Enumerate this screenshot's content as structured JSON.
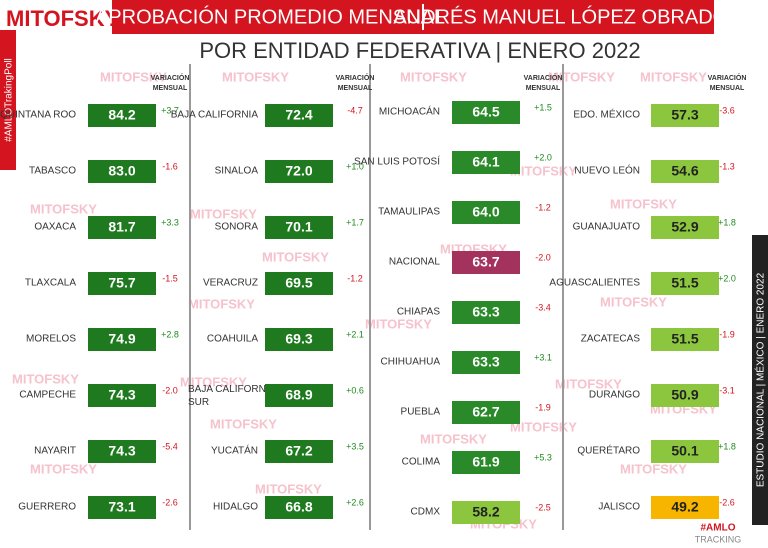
{
  "header": {
    "logo": "MITOFSKY",
    "title": "APROBACIÓN PROMEDIO MENSUAL",
    "title_person": "ANDRÉS MANUEL LÓPEZ OBRADOR",
    "subtitle": "POR ENTIDAD FEDERATIVA | ENERO 2022",
    "side_tag": "#AMLOTrakingPoll",
    "study_label": "ESTUDIO NACIONAL | MÉXICO | ENERO 2022",
    "footer_tag": "#AMLO",
    "footer_sub": "TRACKING",
    "watermark": "MITOFSKY"
  },
  "chart_data": [
    {
      "type": "bar",
      "variation_label": "VARIACIÓN MENSUAL",
      "categories": [
        "QUINTANA ROO",
        "TABASCO",
        "OAXACA",
        "TLAXCALA",
        "MORELOS",
        "CAMPECHE",
        "NAYARIT",
        "GUERRERO"
      ],
      "values": [
        84.2,
        83.0,
        81.7,
        75.7,
        74.9,
        74.3,
        74.3,
        73.1
      ],
      "value_labels": [
        "84.2",
        "83.0",
        "81.7",
        "75.7",
        "74.9",
        "74.3",
        "74.3",
        "73.1"
      ],
      "colors": [
        "#1f7a1f",
        "#1f7a1f",
        "#1f7a1f",
        "#1f7a1f",
        "#1f7a1f",
        "#1f7a1f",
        "#1f7a1f",
        "#1f7a1f"
      ],
      "variation": [
        3.7,
        -1.6,
        3.3,
        -1.5,
        2.8,
        -2.0,
        -5.4,
        -2.6
      ],
      "variation_labels": [
        "+3.7",
        "-1.6",
        "+3.3",
        "-1.5",
        "+2.8",
        "-2.0",
        "-5.4",
        "-2.6"
      ]
    },
    {
      "type": "bar",
      "variation_label": "VARIACIÓN MENSUAL",
      "categories": [
        "BAJA CALIFORNIA",
        "SINALOA",
        "SONORA",
        "VERACRUZ",
        "COAHUILA",
        "BAJA CALIFORNIA SUR",
        "YUCATÁN",
        "HIDALGO"
      ],
      "values": [
        72.4,
        72.0,
        70.1,
        69.5,
        69.3,
        68.9,
        67.2,
        66.8
      ],
      "value_labels": [
        "72.4",
        "72.0",
        "70.1",
        "69.5",
        "69.3",
        "68.9",
        "67.2",
        "66.8"
      ],
      "colors": [
        "#1f7a1f",
        "#1f7a1f",
        "#1f7a1f",
        "#1f7a1f",
        "#1f7a1f",
        "#1f7a1f",
        "#1f7a1f",
        "#1f7a1f"
      ],
      "variation": [
        -4.7,
        1.0,
        1.7,
        -1.2,
        2.1,
        0.6,
        3.5,
        2.6
      ],
      "variation_labels": [
        "-4.7",
        "+1.0",
        "+1.7",
        "-1.2",
        "+2.1",
        "+0.6",
        "+3.5",
        "+2.6"
      ]
    },
    {
      "type": "bar",
      "variation_label": "VARIACIÓN MENSUAL",
      "categories": [
        "MICHOACÁN",
        "SAN LUIS POTOSÍ",
        "TAMAULIPAS",
        "NACIONAL",
        "CHIAPAS",
        "CHIHUAHUA",
        "PUEBLA",
        "COLIMA",
        "CDMX"
      ],
      "values": [
        64.5,
        64.1,
        64.0,
        63.7,
        63.3,
        63.3,
        62.7,
        61.9,
        58.2
      ],
      "value_labels": [
        "64.5",
        "64.1",
        "64.0",
        "63.7",
        "63.3",
        "63.3",
        "62.7",
        "61.9",
        "58.2"
      ],
      "colors": [
        "#2a8a2a",
        "#2a8a2a",
        "#2a8a2a",
        "#a3325c",
        "#2a8a2a",
        "#2a8a2a",
        "#2a8a2a",
        "#2a8a2a",
        "#8cc63f"
      ],
      "variation": [
        1.5,
        2.0,
        -1.2,
        -2.0,
        -3.4,
        3.1,
        -1.9,
        5.3,
        -2.5
      ],
      "variation_labels": [
        "+1.5",
        "+2.0",
        "-1.2",
        "-2.0",
        "-3.4",
        "+3.1",
        "-1.9",
        "+5.3",
        "-2.5"
      ]
    },
    {
      "type": "bar",
      "variation_label": "VARIACIÓN MENSUAL",
      "categories": [
        "EDO. MÉXICO",
        "NUEVO LEÓN",
        "GUANAJUATO",
        "AGUASCALIENTES",
        "ZACATECAS",
        "DURANGO",
        "QUERÉTARO",
        "JALISCO"
      ],
      "values": [
        57.3,
        54.6,
        52.9,
        51.5,
        51.5,
        50.9,
        50.1,
        49.2
      ],
      "value_labels": [
        "57.3",
        "54.6",
        "52.9",
        "51.5",
        "51.5",
        "50.9",
        "50.1",
        "49.2"
      ],
      "colors": [
        "#8cc63f",
        "#8cc63f",
        "#8cc63f",
        "#8cc63f",
        "#8cc63f",
        "#8cc63f",
        "#8cc63f",
        "#f7b500"
      ],
      "variation": [
        -3.6,
        -1.3,
        1.8,
        2.0,
        -1.9,
        -3.1,
        1.8,
        -2.6
      ],
      "variation_labels": [
        "-3.6",
        "-1.3",
        "+1.8",
        "+2.0",
        "-1.9",
        "-3.1",
        "+1.8",
        "-2.6"
      ]
    }
  ]
}
